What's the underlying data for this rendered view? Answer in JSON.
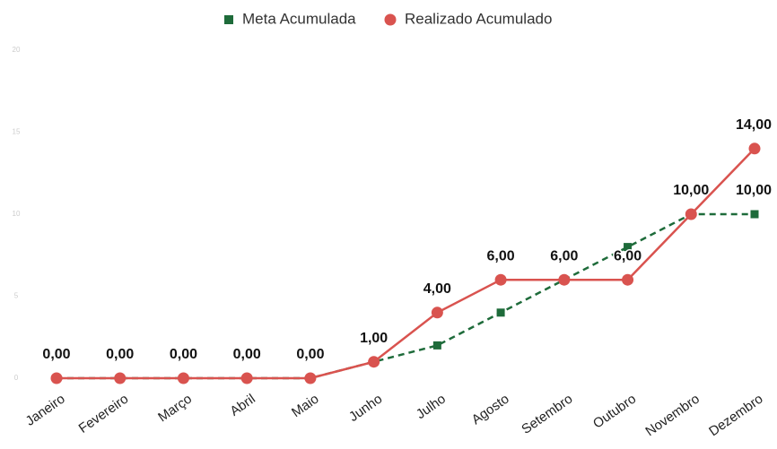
{
  "chart_data": {
    "type": "line",
    "categories": [
      "Janeiro",
      "Fevereiro",
      "Março",
      "Abril",
      "Maio",
      "Junho",
      "Julho",
      "Agosto",
      "Setembro",
      "Outubro",
      "Novembro",
      "Dezembro"
    ],
    "series": [
      {
        "name": "Meta Acumulada",
        "color": "#1e6b3a",
        "dashed": true,
        "marker": "square",
        "values": [
          0,
          0,
          0,
          0,
          0,
          1,
          2,
          4,
          6,
          8,
          10,
          10
        ],
        "value_labels": [
          null,
          null,
          null,
          null,
          null,
          null,
          null,
          null,
          null,
          null,
          null,
          "10,00"
        ]
      },
      {
        "name": "Realizado Acumulado",
        "color": "#d9534f",
        "dashed": false,
        "marker": "circle",
        "values": [
          0,
          0,
          0,
          0,
          0,
          1,
          4,
          6,
          6,
          6,
          10,
          14
        ],
        "value_labels": [
          "0,00",
          "0,00",
          "0,00",
          "0,00",
          "0,00",
          "1,00",
          "4,00",
          "6,00",
          "6,00",
          "6,00",
          "10,00",
          "14,00"
        ]
      }
    ],
    "ylim": [
      0,
      20
    ],
    "yticks": [
      0,
      5,
      10,
      15,
      20
    ],
    "grid": false,
    "legend": "top"
  }
}
